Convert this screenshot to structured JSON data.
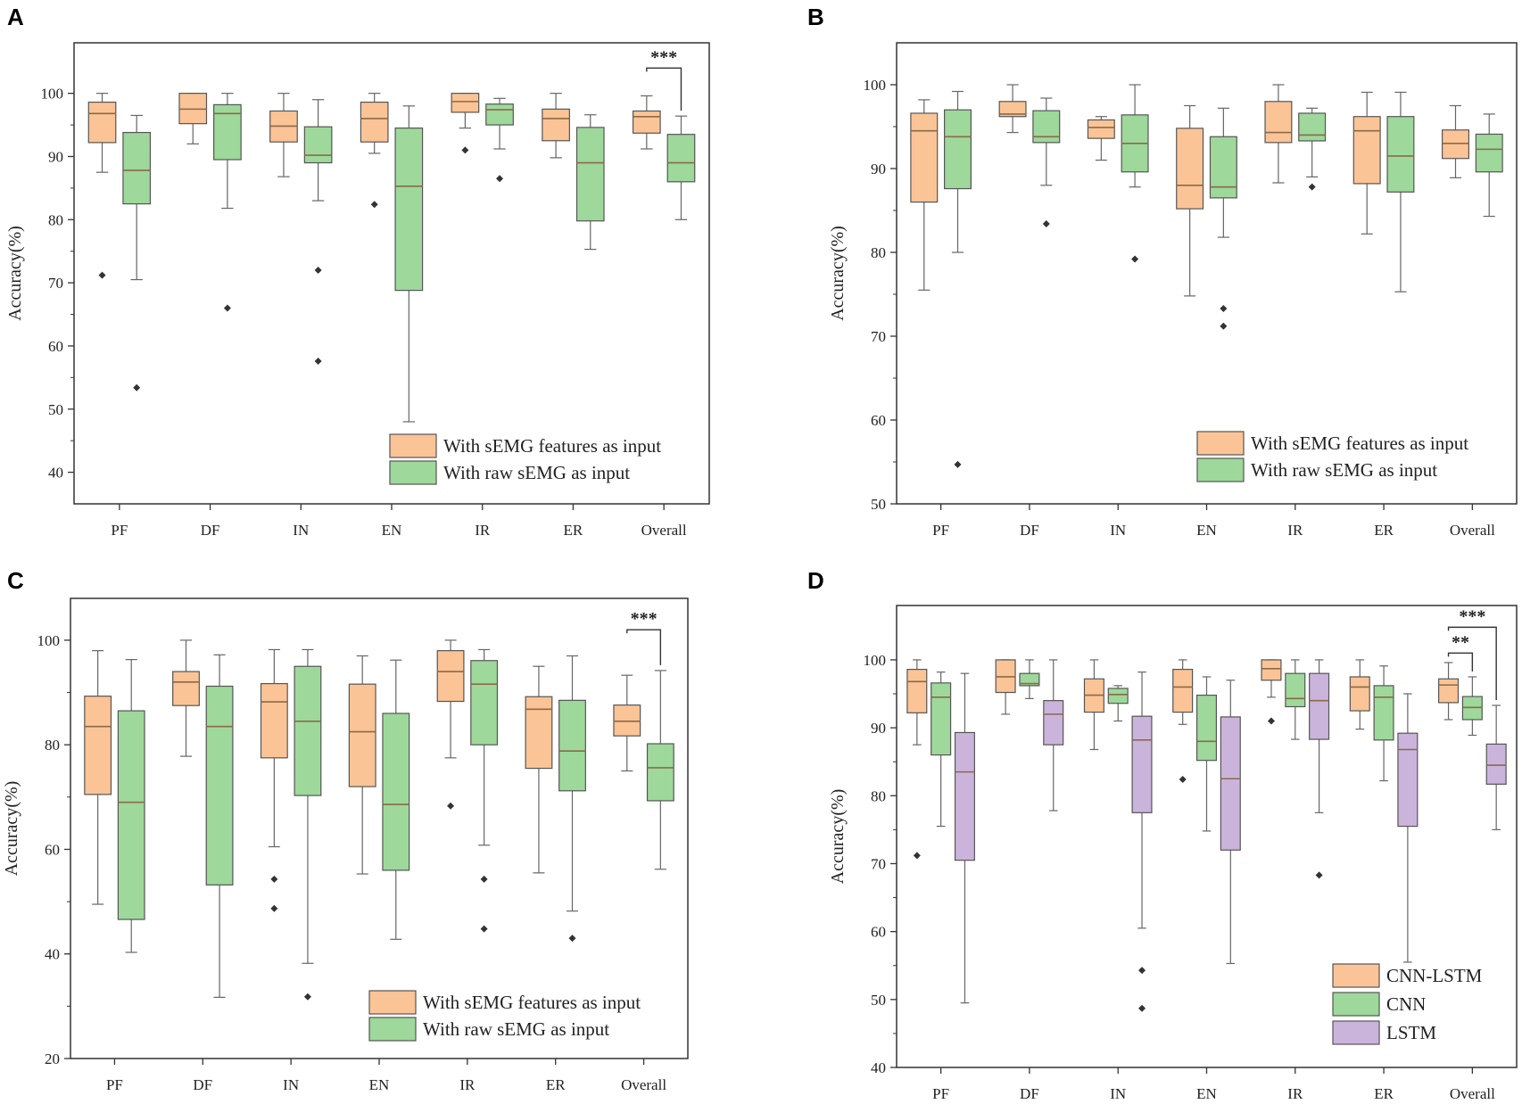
{
  "colors": {
    "orange": "#fbc496",
    "green": "#9ed89b",
    "purple": "#cbb4dc",
    "box_stroke": "#555555",
    "median": "#8a6a4a",
    "frame": "#333333"
  },
  "chart_data": [
    {
      "panel": "A",
      "type": "box",
      "ylabel": "Accuracy(%)",
      "xlabel": "",
      "ylim": [
        35,
        108
      ],
      "yticks": [
        40,
        50,
        60,
        70,
        80,
        90,
        100
      ],
      "categories": [
        "PF",
        "DF",
        "IN",
        "EN",
        "IR",
        "ER",
        "Overall"
      ],
      "legend_position": "bottom-right",
      "series": [
        {
          "name": "With sEMG features as input",
          "color": "orange",
          "boxes": [
            {
              "min": 87.5,
              "q1": 92.2,
              "median": 96.8,
              "q3": 98.6,
              "max": 100,
              "outliers": [
                71.2
              ]
            },
            {
              "min": 92,
              "q1": 95.2,
              "median": 97.5,
              "q3": 100,
              "max": 100,
              "outliers": []
            },
            {
              "min": 86.8,
              "q1": 92.3,
              "median": 94.8,
              "q3": 97.2,
              "max": 100,
              "outliers": []
            },
            {
              "min": 90.5,
              "q1": 92.3,
              "median": 96,
              "q3": 98.6,
              "max": 100,
              "outliers": [
                82.4
              ]
            },
            {
              "min": 94.5,
              "q1": 97,
              "median": 98.7,
              "q3": 100,
              "max": 100,
              "outliers": [
                91
              ]
            },
            {
              "min": 89.8,
              "q1": 92.5,
              "median": 96,
              "q3": 97.5,
              "max": 100,
              "outliers": []
            },
            {
              "min": 91.2,
              "q1": 93.7,
              "median": 96.3,
              "q3": 97.2,
              "max": 99.6,
              "outliers": []
            }
          ]
        },
        {
          "name": "With raw sEMG as input",
          "color": "green",
          "boxes": [
            {
              "min": 70.5,
              "q1": 82.5,
              "median": 87.8,
              "q3": 93.8,
              "max": 96.5,
              "outliers": [
                53.4
              ]
            },
            {
              "min": 81.8,
              "q1": 89.5,
              "median": 96.8,
              "q3": 98.2,
              "max": 100,
              "outliers": [
                66
              ]
            },
            {
              "min": 83,
              "q1": 89,
              "median": 90.2,
              "q3": 94.7,
              "max": 99,
              "outliers": [
                72,
                57.6
              ]
            },
            {
              "min": 48,
              "q1": 68.8,
              "median": 85.3,
              "q3": 94.5,
              "max": 98,
              "outliers": []
            },
            {
              "min": 91.2,
              "q1": 95,
              "median": 97.4,
              "q3": 98.3,
              "max": 99.2,
              "outliers": [
                86.5
              ]
            },
            {
              "min": 75.3,
              "q1": 79.8,
              "median": 89,
              "q3": 94.6,
              "max": 96.6,
              "outliers": []
            },
            {
              "min": 80,
              "q1": 86,
              "median": 89,
              "q3": 93.5,
              "max": 96.4,
              "outliers": []
            }
          ]
        }
      ],
      "significance": [
        {
          "label": "***",
          "category_index": 6,
          "from_series": 0,
          "to_series": 1,
          "level": 104
        }
      ]
    },
    {
      "panel": "B",
      "type": "box",
      "ylabel": "Accuracy(%)",
      "xlabel": "",
      "ylim": [
        50,
        105
      ],
      "yticks": [
        50,
        60,
        70,
        80,
        90,
        100
      ],
      "categories": [
        "PF",
        "DF",
        "IN",
        "EN",
        "IR",
        "ER",
        "Overall"
      ],
      "legend_position": "bottom-right",
      "series": [
        {
          "name": "With sEMG features as input",
          "color": "orange",
          "boxes": [
            {
              "min": 75.5,
              "q1": 86,
              "median": 94.5,
              "q3": 96.6,
              "max": 98.2,
              "outliers": []
            },
            {
              "min": 94.3,
              "q1": 96.2,
              "median": 96.5,
              "q3": 98,
              "max": 100,
              "outliers": []
            },
            {
              "min": 91,
              "q1": 93.6,
              "median": 94.9,
              "q3": 95.8,
              "max": 96.2,
              "outliers": []
            },
            {
              "min": 74.8,
              "q1": 85.2,
              "median": 88,
              "q3": 94.8,
              "max": 97.5,
              "outliers": []
            },
            {
              "min": 88.3,
              "q1": 93.1,
              "median": 94.3,
              "q3": 98,
              "max": 100,
              "outliers": []
            },
            {
              "min": 82.2,
              "q1": 88.2,
              "median": 94.5,
              "q3": 96.2,
              "max": 99.1,
              "outliers": []
            },
            {
              "min": 88.9,
              "q1": 91.2,
              "median": 93,
              "q3": 94.6,
              "max": 97.5,
              "outliers": []
            }
          ]
        },
        {
          "name": "With raw sEMG as input",
          "color": "green",
          "boxes": [
            {
              "min": 80,
              "q1": 87.6,
              "median": 93.8,
              "q3": 97,
              "max": 99.2,
              "outliers": [
                54.7
              ]
            },
            {
              "min": 88,
              "q1": 93.1,
              "median": 93.8,
              "q3": 96.9,
              "max": 98.4,
              "outliers": [
                83.4
              ]
            },
            {
              "min": 87.8,
              "q1": 89.6,
              "median": 93,
              "q3": 96.4,
              "max": 100,
              "outliers": [
                79.2
              ]
            },
            {
              "min": 81.8,
              "q1": 86.5,
              "median": 87.8,
              "q3": 93.8,
              "max": 97.2,
              "outliers": [
                73.3,
                71.2
              ]
            },
            {
              "min": 89,
              "q1": 93.3,
              "median": 94,
              "q3": 96.6,
              "max": 97.2,
              "outliers": [
                87.8
              ]
            },
            {
              "min": 75.3,
              "q1": 87.2,
              "median": 91.5,
              "q3": 96.2,
              "max": 99.1,
              "outliers": []
            },
            {
              "min": 84.3,
              "q1": 89.6,
              "median": 92.3,
              "q3": 94.1,
              "max": 96.5,
              "outliers": []
            }
          ]
        }
      ],
      "significance": []
    },
    {
      "panel": "C",
      "type": "box",
      "ylabel": "Accuracy(%)",
      "xlabel": "",
      "ylim": [
        20,
        108
      ],
      "yticks": [
        20,
        40,
        60,
        80,
        100
      ],
      "categories": [
        "PF",
        "DF",
        "IN",
        "EN",
        "IR",
        "ER",
        "Overall"
      ],
      "legend_position": "bottom-right",
      "series": [
        {
          "name": "With sEMG features as input",
          "color": "orange",
          "boxes": [
            {
              "min": 49.5,
              "q1": 70.5,
              "median": 83.5,
              "q3": 89.3,
              "max": 98,
              "outliers": []
            },
            {
              "min": 77.8,
              "q1": 87.5,
              "median": 92,
              "q3": 94,
              "max": 100,
              "outliers": []
            },
            {
              "min": 60.5,
              "q1": 77.5,
              "median": 88.2,
              "q3": 91.7,
              "max": 98.2,
              "outliers": [
                54.3,
                48.7
              ]
            },
            {
              "min": 55.3,
              "q1": 72,
              "median": 82.5,
              "q3": 91.6,
              "max": 97,
              "outliers": []
            },
            {
              "min": 77.5,
              "q1": 88.3,
              "median": 94,
              "q3": 98,
              "max": 100,
              "outliers": [
                68.3
              ]
            },
            {
              "min": 55.5,
              "q1": 75.5,
              "median": 86.8,
              "q3": 89.2,
              "max": 95,
              "outliers": []
            },
            {
              "min": 75,
              "q1": 81.7,
              "median": 84.5,
              "q3": 87.6,
              "max": 93.3,
              "outliers": []
            }
          ]
        },
        {
          "name": "With raw sEMG as input",
          "color": "green",
          "boxes": [
            {
              "min": 40.3,
              "q1": 46.6,
              "median": 69,
              "q3": 86.5,
              "max": 96.3,
              "outliers": []
            },
            {
              "min": 31.7,
              "q1": 53.2,
              "median": 83.5,
              "q3": 91.2,
              "max": 97.2,
              "outliers": []
            },
            {
              "min": 38.2,
              "q1": 70.3,
              "median": 84.5,
              "q3": 95,
              "max": 98.2,
              "outliers": [
                31.8
              ]
            },
            {
              "min": 42.8,
              "q1": 56,
              "median": 68.6,
              "q3": 86,
              "max": 96.2,
              "outliers": []
            },
            {
              "min": 60.8,
              "q1": 80,
              "median": 91.6,
              "q3": 96.1,
              "max": 98.2,
              "outliers": [
                54.3,
                44.8
              ]
            },
            {
              "min": 48.2,
              "q1": 71.2,
              "median": 78.8,
              "q3": 88.5,
              "max": 97,
              "outliers": [
                43
              ]
            },
            {
              "min": 56.2,
              "q1": 69.3,
              "median": 75.6,
              "q3": 80.2,
              "max": 94.2,
              "outliers": []
            }
          ]
        }
      ],
      "significance": [
        {
          "label": "***",
          "category_index": 6,
          "from_series": 0,
          "to_series": 1,
          "level": 102
        }
      ]
    },
    {
      "panel": "D",
      "type": "box",
      "ylabel": "Accuracy(%)",
      "xlabel": "",
      "ylim": [
        40,
        108
      ],
      "yticks": [
        40,
        50,
        60,
        70,
        80,
        90,
        100
      ],
      "categories": [
        "PF",
        "DF",
        "IN",
        "EN",
        "IR",
        "ER",
        "Overall"
      ],
      "legend_position": "bottom-right",
      "series": [
        {
          "name": "CNN-LSTM",
          "color": "orange",
          "boxes": [
            {
              "min": 87.5,
              "q1": 92.2,
              "median": 96.8,
              "q3": 98.6,
              "max": 100,
              "outliers": [
                71.2
              ]
            },
            {
              "min": 92,
              "q1": 95.2,
              "median": 97.5,
              "q3": 100,
              "max": 100,
              "outliers": []
            },
            {
              "min": 86.8,
              "q1": 92.3,
              "median": 94.8,
              "q3": 97.2,
              "max": 100,
              "outliers": []
            },
            {
              "min": 90.5,
              "q1": 92.3,
              "median": 96,
              "q3": 98.6,
              "max": 100,
              "outliers": [
                82.4
              ]
            },
            {
              "min": 94.5,
              "q1": 97,
              "median": 98.7,
              "q3": 100,
              "max": 100,
              "outliers": [
                91
              ]
            },
            {
              "min": 89.8,
              "q1": 92.5,
              "median": 96,
              "q3": 97.5,
              "max": 100,
              "outliers": []
            },
            {
              "min": 91.2,
              "q1": 93.7,
              "median": 96.3,
              "q3": 97.2,
              "max": 99.6,
              "outliers": []
            }
          ]
        },
        {
          "name": "CNN",
          "color": "green",
          "boxes": [
            {
              "min": 75.5,
              "q1": 86,
              "median": 94.5,
              "q3": 96.6,
              "max": 98.2,
              "outliers": []
            },
            {
              "min": 94.3,
              "q1": 96.2,
              "median": 96.5,
              "q3": 98,
              "max": 100,
              "outliers": []
            },
            {
              "min": 91,
              "q1": 93.6,
              "median": 94.9,
              "q3": 95.8,
              "max": 96.2,
              "outliers": []
            },
            {
              "min": 74.8,
              "q1": 85.2,
              "median": 88,
              "q3": 94.8,
              "max": 97.5,
              "outliers": []
            },
            {
              "min": 88.3,
              "q1": 93.1,
              "median": 94.3,
              "q3": 98,
              "max": 100,
              "outliers": []
            },
            {
              "min": 82.2,
              "q1": 88.2,
              "median": 94.5,
              "q3": 96.2,
              "max": 99.1,
              "outliers": []
            },
            {
              "min": 88.9,
              "q1": 91.2,
              "median": 93,
              "q3": 94.6,
              "max": 97.5,
              "outliers": []
            }
          ]
        },
        {
          "name": "LSTM",
          "color": "purple",
          "boxes": [
            {
              "min": 49.5,
              "q1": 70.5,
              "median": 83.5,
              "q3": 89.3,
              "max": 98,
              "outliers": []
            },
            {
              "min": 77.8,
              "q1": 87.5,
              "median": 92,
              "q3": 94,
              "max": 100,
              "outliers": []
            },
            {
              "min": 60.5,
              "q1": 77.5,
              "median": 88.2,
              "q3": 91.7,
              "max": 98.2,
              "outliers": [
                54.3,
                48.7
              ]
            },
            {
              "min": 55.3,
              "q1": 72,
              "median": 82.5,
              "q3": 91.6,
              "max": 97,
              "outliers": []
            },
            {
              "min": 77.5,
              "q1": 88.3,
              "median": 94,
              "q3": 98,
              "max": 100,
              "outliers": [
                68.3
              ]
            },
            {
              "min": 55.5,
              "q1": 75.5,
              "median": 86.8,
              "q3": 89.2,
              "max": 95,
              "outliers": []
            },
            {
              "min": 75,
              "q1": 81.7,
              "median": 84.5,
              "q3": 87.6,
              "max": 93.3,
              "outliers": []
            }
          ]
        }
      ],
      "significance": [
        {
          "label": "***",
          "category_index": 6,
          "from_series": 0,
          "to_series": 2,
          "level": 104.8
        },
        {
          "label": "**",
          "category_index": 6,
          "from_series": 0,
          "to_series": 1,
          "level": 101
        }
      ]
    }
  ]
}
